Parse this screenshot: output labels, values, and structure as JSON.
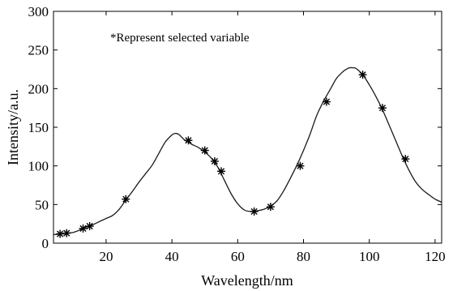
{
  "chart_data": {
    "type": "line",
    "xlabel": "Wavelength/nm",
    "ylabel": "Intensity/a.u.",
    "annotation": "*Represent selected variable",
    "xlim": [
      4,
      122
    ],
    "ylim": [
      0,
      300
    ],
    "xticks": [
      20,
      40,
      60,
      80,
      100,
      120
    ],
    "yticks": [
      0,
      50,
      100,
      150,
      200,
      250,
      300
    ],
    "grid": false,
    "colors": {
      "line": "#1a1a1a",
      "axes": "#000000",
      "marker": "#000000"
    },
    "series": [
      {
        "values_x": [
          4,
          6,
          8,
          10,
          12,
          14,
          16,
          18,
          20,
          22,
          24,
          26,
          28,
          30,
          32,
          34,
          36,
          38,
          40,
          41,
          42,
          43,
          44,
          45,
          46,
          48,
          50,
          52,
          54,
          56,
          58,
          60,
          62,
          64,
          66,
          68,
          70,
          72,
          74,
          76,
          78,
          80,
          82,
          84,
          86,
          88,
          90,
          92,
          93,
          94,
          95,
          96,
          98,
          100,
          102,
          104,
          106,
          108,
          110,
          112,
          114,
          116,
          118,
          120,
          122
        ],
        "values_y": [
          11,
          12,
          13,
          14,
          17,
          21,
          24,
          28,
          32,
          36,
          44,
          56,
          67,
          79,
          90,
          101,
          116,
          131,
          140,
          142,
          141,
          137,
          133,
          131,
          128,
          124,
          118,
          110,
          98,
          81,
          64,
          51,
          43,
          41,
          42,
          44,
          48,
          55,
          68,
          84,
          101,
          120,
          141,
          165,
          183,
          198,
          213,
          222,
          225,
          227,
          227,
          226,
          218,
          205,
          190,
          173,
          153,
          133,
          113,
          95,
          80,
          70,
          63,
          57,
          53
        ]
      }
    ],
    "selected_points": {
      "x": [
        6,
        8,
        13,
        15,
        26,
        45,
        50,
        53,
        55,
        65,
        70,
        79,
        87,
        98,
        104,
        111
      ],
      "y": [
        12,
        13,
        19,
        22,
        57,
        133,
        120,
        106,
        93,
        41,
        47,
        100,
        183,
        218,
        175,
        109
      ]
    }
  }
}
